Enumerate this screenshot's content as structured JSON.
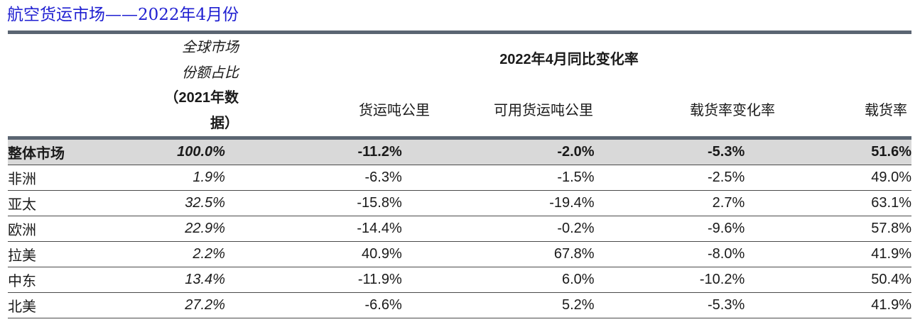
{
  "title": "航空货运市场——2022年4月份",
  "header": {
    "share_line1": "全球市场",
    "share_line2": "份额占比",
    "share_line3": "（2021年数",
    "share_line4": "据）",
    "yoy_title": "2022年4月同比变化率",
    "col_rtk": "货运吨公里",
    "col_atk": "可用货运吨公里",
    "col_lf_change": "载货率变化率",
    "col_lf": "载货率"
  },
  "rows": [
    {
      "region": "整体市场",
      "share": "100.0%",
      "rtk": "-11.2%",
      "atk": "-2.0%",
      "lf_change": "-5.3%",
      "lf": "51.6%"
    },
    {
      "region": "非洲",
      "share": "1.9%",
      "rtk": "-6.3%",
      "atk": "-1.5%",
      "lf_change": "-2.5%",
      "lf": "49.0%"
    },
    {
      "region": "亚太",
      "share": "32.5%",
      "rtk": "-15.8%",
      "atk": "-19.4%",
      "lf_change": "2.7%",
      "lf": "63.1%"
    },
    {
      "region": "欧洲",
      "share": "22.9%",
      "rtk": "-14.4%",
      "atk": "-0.2%",
      "lf_change": "-9.6%",
      "lf": "57.8%"
    },
    {
      "region": "拉美",
      "share": "2.2%",
      "rtk": "40.9%",
      "atk": "67.8%",
      "lf_change": "-8.0%",
      "lf": "41.9%"
    },
    {
      "region": "中东",
      "share": "13.4%",
      "rtk": "-11.9%",
      "atk": "6.0%",
      "lf_change": "-10.2%",
      "lf": "50.4%"
    },
    {
      "region": "北美",
      "share": "27.2%",
      "rtk": "-6.6%",
      "atk": "5.2%",
      "lf_change": "-5.3%",
      "lf": "41.9%"
    }
  ],
  "colors": {
    "title": "#1f1fd1",
    "rule": "#5b6572",
    "total_row_bg": "#d9d9d9"
  }
}
